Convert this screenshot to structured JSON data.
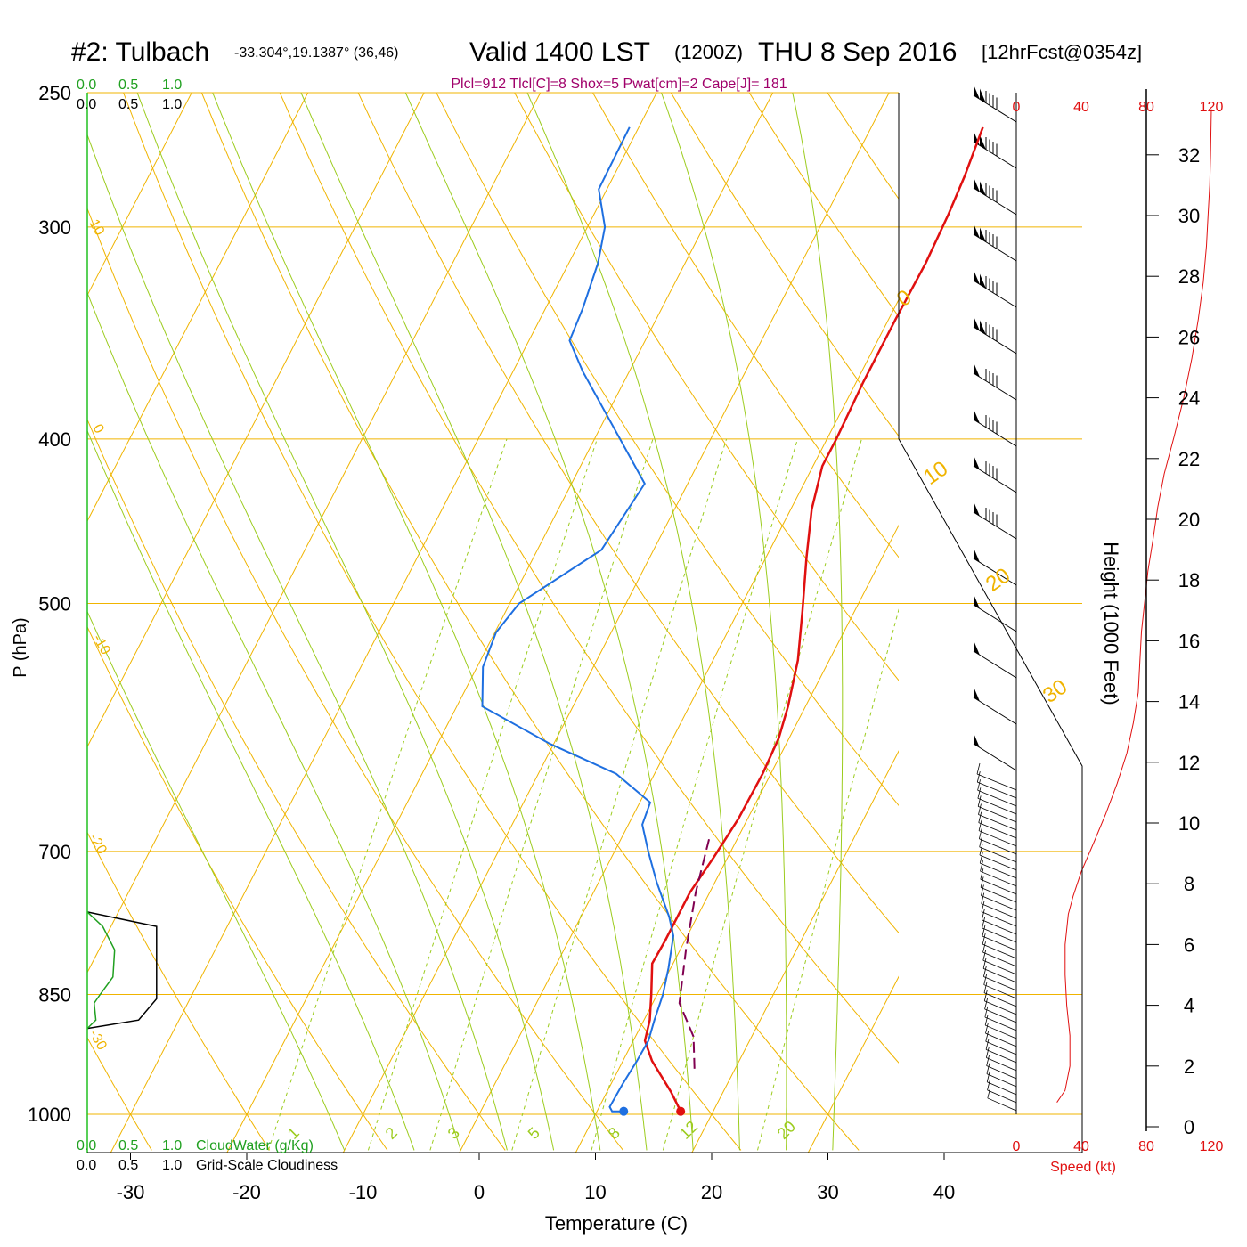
{
  "header": {
    "title": "#2: Tulbach",
    "location": "-33.304°,19.1387° (36,46)",
    "valid": "Valid 1400 LST",
    "zulu": "(1200Z)",
    "date": "THU 8 Sep 2016",
    "forecast": "[12hrFcst@0354z]",
    "indices": "Plcl=912 Tlcl[C]=8 Shox=5 Pwat[cm]=2 Cape[J]= 181"
  },
  "colors": {
    "temperature": "#e01010",
    "dewpoint": "#1e6fe0",
    "parcel": "#800050",
    "isotherm": "#f0b400",
    "dry_adiabat": "#f0b400",
    "moist_adiabat": "#9ccc1e",
    "mixing_ratio": "#9ccc1e",
    "cloud_water": "#20a020",
    "wind_speed": "#e01010",
    "indices_text": "#a0006a"
  },
  "legend": {
    "cloudwater_ticks": [
      "0.0",
      "0.5",
      "1.0"
    ],
    "cloudwater_label": "CloudWater (g/Kg)",
    "cloudiness_ticks": [
      "0.0",
      "0.5",
      "1.0"
    ],
    "cloudiness_label": "Grid-Scale Cloudiness"
  },
  "chart_data": [
    {
      "type": "line",
      "name": "skew-t",
      "xlabel": "Temperature (C)",
      "ylabel": "P (hPa)",
      "xticks": [
        -30,
        -20,
        -10,
        0,
        10,
        20,
        30,
        40
      ],
      "yticks": [
        250,
        300,
        400,
        500,
        700,
        850,
        1000
      ],
      "ylim": [
        1000,
        250
      ],
      "ylog": true,
      "isotherm_labels": [
        "10",
        "0",
        "-10",
        "-20",
        "-30",
        "0",
        "10",
        "20",
        "30"
      ],
      "mixing_ratio_labels": [
        "1",
        "2",
        "3",
        "5",
        "8",
        "12",
        "20"
      ],
      "series": [
        {
          "key": "temperature",
          "points": [
            [
              17.2,
              996
            ],
            [
              15.5,
              970
            ],
            [
              12.5,
              930
            ],
            [
              11.0,
              905
            ],
            [
              10.5,
              880
            ],
            [
              9.5,
              850
            ],
            [
              8.2,
              815
            ],
            [
              8.3,
              790
            ],
            [
              8.3,
              740
            ],
            [
              8.8,
              705
            ],
            [
              9.2,
              670
            ],
            [
              9.3,
              630
            ],
            [
              9.1,
              600
            ],
            [
              8.5,
              575
            ],
            [
              7.3,
              540
            ],
            [
              5.5,
              505
            ],
            [
              3.5,
              470
            ],
            [
              1.8,
              440
            ],
            [
              0.8,
              415
            ],
            [
              0.8,
              400
            ],
            [
              0.6,
              370
            ],
            [
              0.6,
              340
            ],
            [
              0.7,
              315
            ],
            [
              0.5,
              295
            ],
            [
              0.2,
              280
            ],
            [
              -0.4,
              262
            ]
          ]
        },
        {
          "key": "dewpoint",
          "points": [
            [
              12.3,
              996
            ],
            [
              11.3,
              996
            ],
            [
              10.9,
              990
            ],
            [
              11.0,
              960
            ],
            [
              11.2,
              930
            ],
            [
              11.3,
              905
            ],
            [
              10.9,
              880
            ],
            [
              10.5,
              850
            ],
            [
              9.8,
              820
            ],
            [
              8.8,
              785
            ],
            [
              7.6,
              765
            ],
            [
              5.0,
              730
            ],
            [
              2.9,
              700
            ],
            [
              1.2,
              675
            ],
            [
              0.9,
              655
            ],
            [
              -3.3,
              630
            ],
            [
              -10.3,
              605
            ],
            [
              -17.8,
              575
            ],
            [
              -19.5,
              545
            ],
            [
              -19.9,
              520
            ],
            [
              -19.2,
              500
            ],
            [
              -14.5,
              465
            ],
            [
              -13.7,
              425
            ],
            [
              -24.0,
              365
            ],
            [
              -26.5,
              350
            ],
            [
              -26.8,
              335
            ],
            [
              -27.5,
              315
            ],
            [
              -28.5,
              300
            ],
            [
              -30.7,
              285
            ],
            [
              -30.8,
              262
            ]
          ]
        },
        {
          "key": "parcel",
          "points": [
            [
              16.5,
              940
            ],
            [
              15.0,
              900
            ],
            [
              12.3,
              860
            ],
            [
              10.5,
              800
            ],
            [
              8.8,
              740
            ],
            [
              7.5,
              685
            ]
          ]
        }
      ]
    },
    {
      "type": "line",
      "name": "wind-speed",
      "xlabel": "Speed (kt)",
      "x_ticks": [
        0,
        40,
        80,
        120
      ],
      "xlim": [
        0,
        120
      ],
      "y2label": "Height (1000 Feet)",
      "y2ticks": [
        0,
        2,
        4,
        6,
        8,
        10,
        12,
        14,
        16,
        18,
        20,
        22,
        24,
        26,
        28,
        30,
        32
      ],
      "points": [
        [
          25,
          0.8
        ],
        [
          30,
          1.2
        ],
        [
          33,
          2
        ],
        [
          33,
          3
        ],
        [
          31,
          4
        ],
        [
          30,
          5
        ],
        [
          30,
          6
        ],
        [
          32,
          7
        ],
        [
          35,
          7.6
        ],
        [
          40,
          8.4
        ],
        [
          48,
          9.4
        ],
        [
          55,
          10.3
        ],
        [
          62,
          11.3
        ],
        [
          68,
          12.3
        ],
        [
          72,
          13.3
        ],
        [
          75,
          14.3
        ],
        [
          76,
          15.3
        ],
        [
          77,
          16.3
        ],
        [
          79,
          17.3
        ],
        [
          81,
          18.3
        ],
        [
          84,
          19.3
        ],
        [
          87,
          20.4
        ],
        [
          91,
          21.5
        ],
        [
          97,
          22.7
        ],
        [
          103,
          24
        ],
        [
          108,
          25.3
        ],
        [
          112,
          26.6
        ],
        [
          115,
          27.8
        ],
        [
          117,
          29
        ],
        [
          118,
          30
        ],
        [
          119,
          31
        ],
        [
          119.5,
          32
        ],
        [
          120,
          33.5
        ]
      ]
    },
    {
      "type": "line",
      "name": "cloud-profile",
      "cloudiness_points": [
        [
          0.0,
          760
        ],
        [
          0.81,
          775
        ],
        [
          0.81,
          855
        ],
        [
          0.6,
          880
        ],
        [
          0.0,
          890
        ]
      ],
      "cloudwater_points": [
        [
          0.0,
          760
        ],
        [
          0.18,
          775
        ],
        [
          0.32,
          800
        ],
        [
          0.3,
          830
        ],
        [
          0.15,
          850
        ],
        [
          0.08,
          860
        ],
        [
          0.1,
          880
        ],
        [
          0.0,
          890
        ]
      ]
    }
  ]
}
